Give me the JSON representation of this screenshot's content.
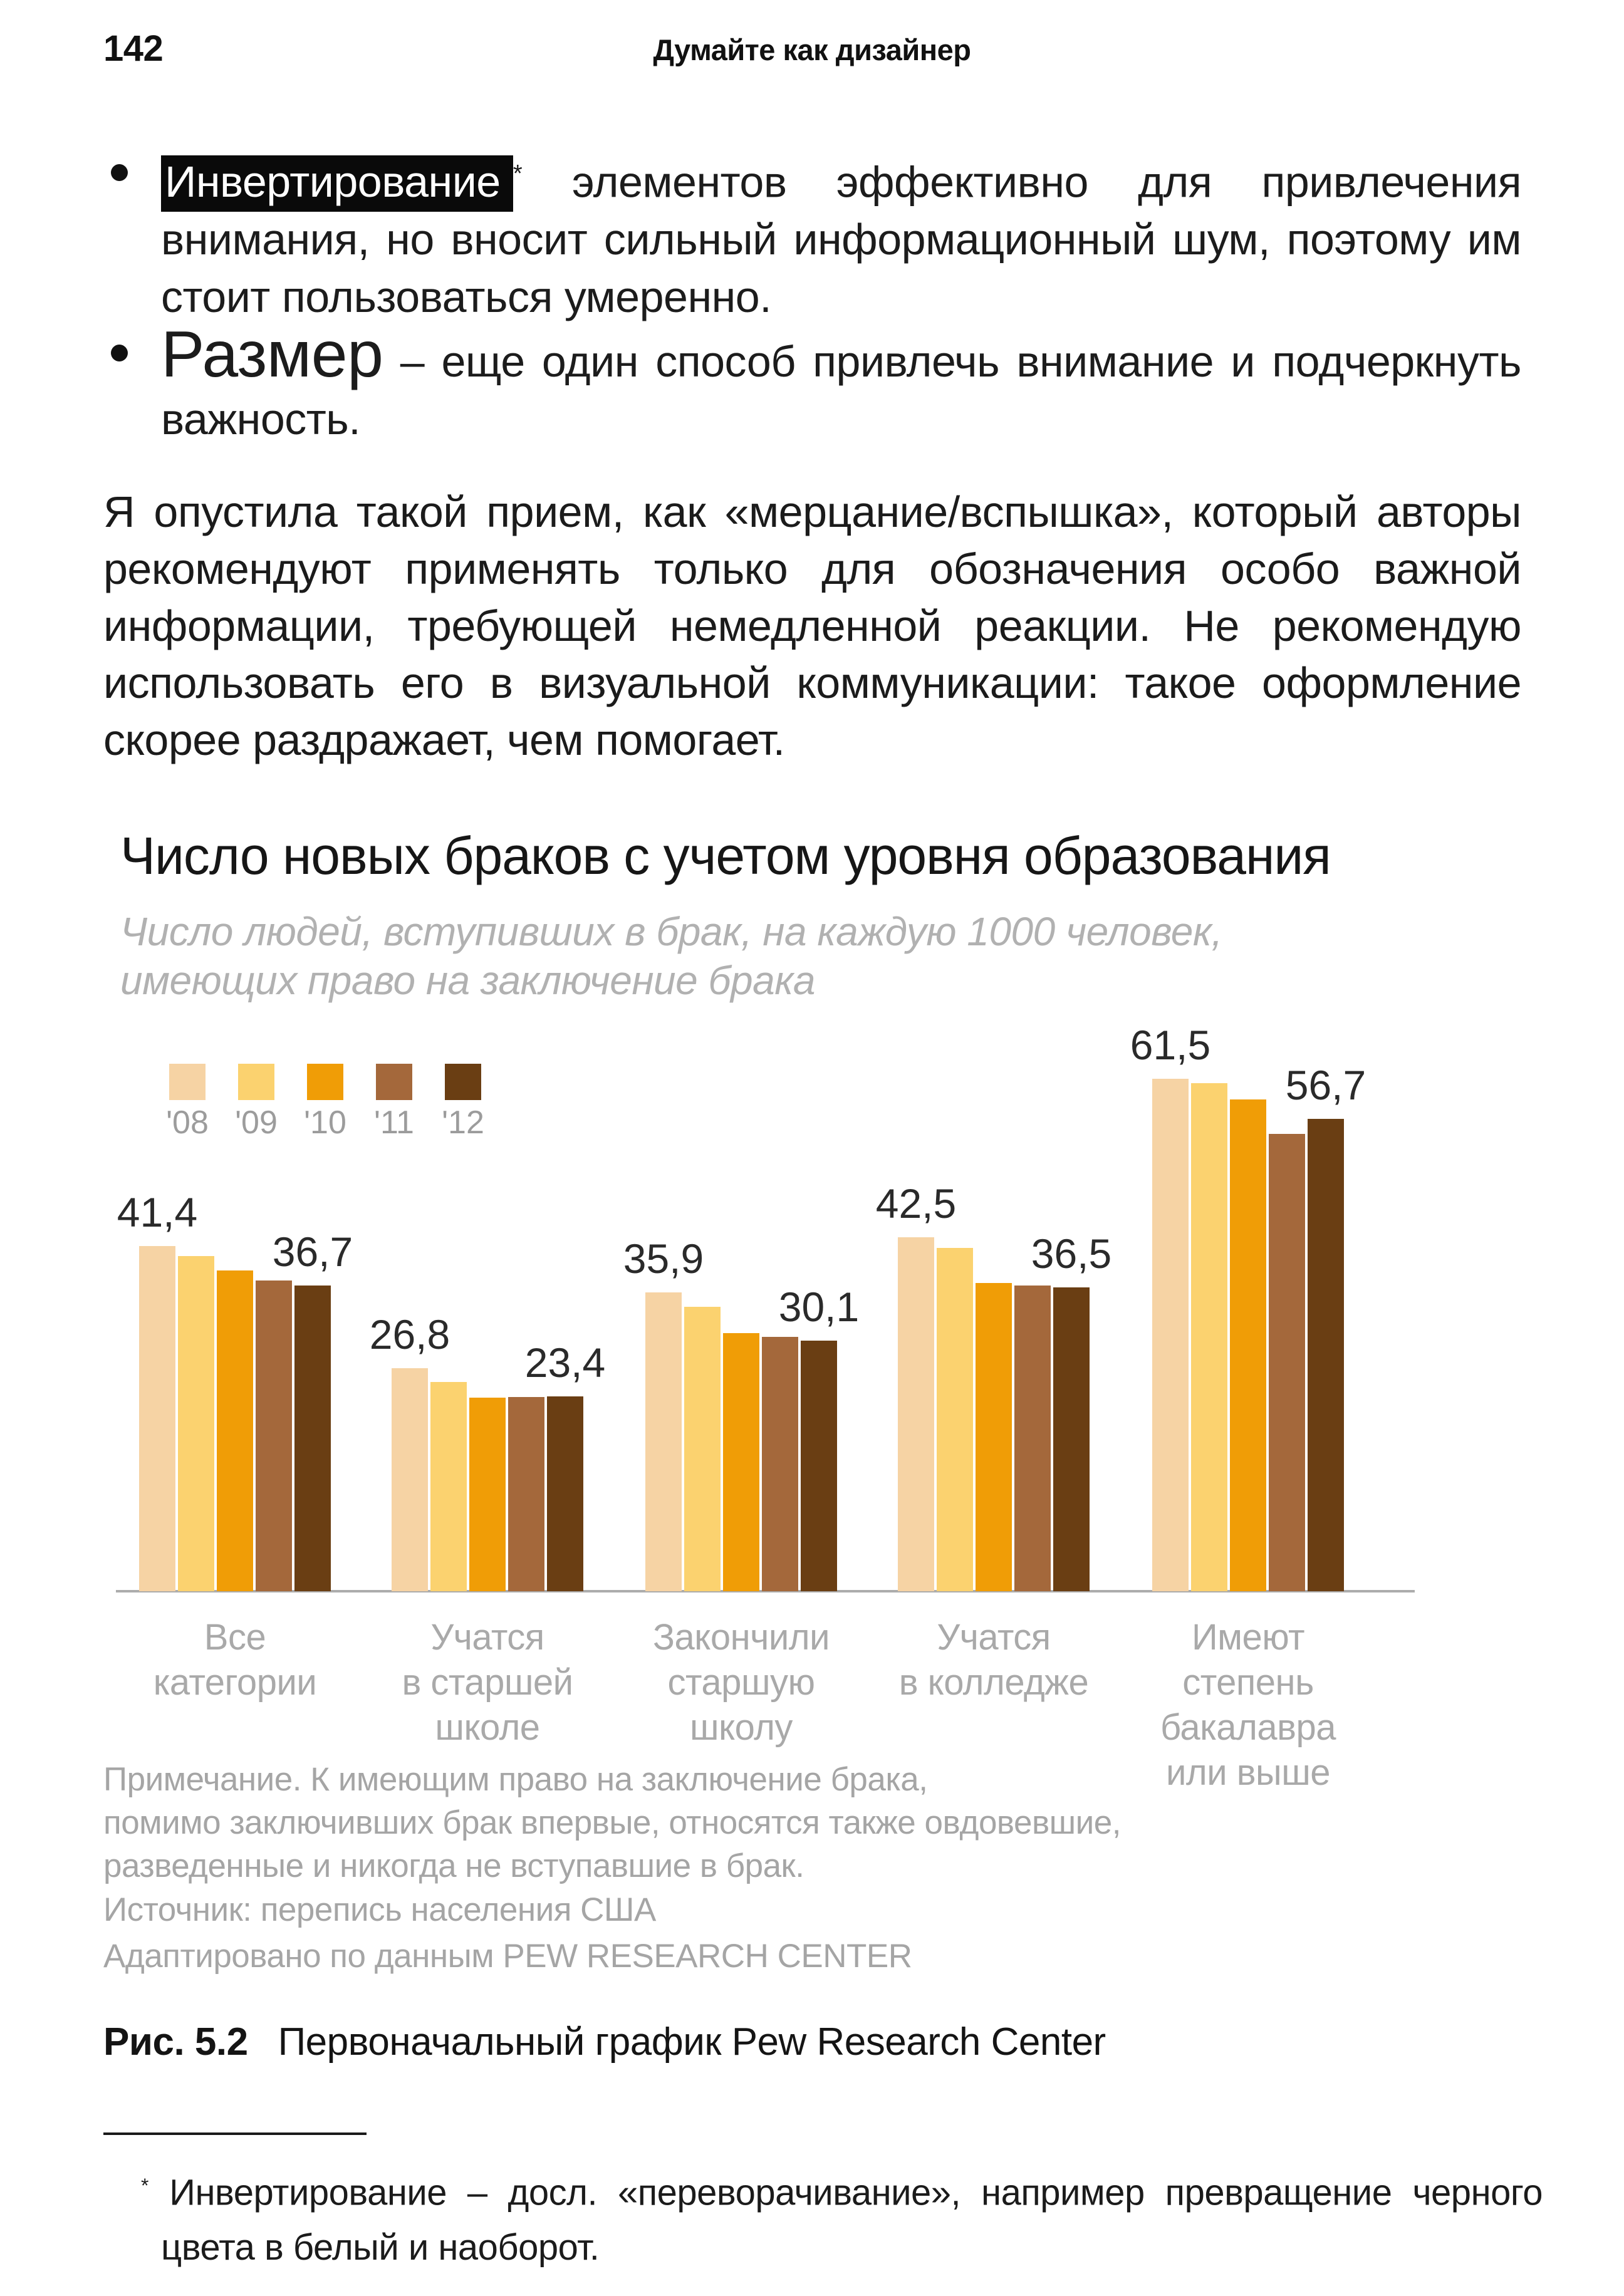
{
  "page": {
    "number": "142",
    "running_head": "Думайте как дизайнер"
  },
  "bullets": [
    {
      "highlight": "Инвертирование",
      "footnote_marker": "*",
      "rest": " элементов эффективно для привлечения внимания, но вносит сильный информационный шум, по­этому им стоит пользоваться умеренно."
    },
    {
      "lead": "Размер",
      "rest": " – еще один способ привлечь внимание и подчерк­нуть важность."
    }
  ],
  "paragraph": "Я опустила такой прием, как «мерцание/вспышка», который авторы рекомендуют применять только для обозначения особо важной информации, требующей немедленной реак­ции. Не рекомендую использовать его в визуальной коммуни­кации: такое оформление скорее раздражает, чем помогает.",
  "chart_data": {
    "type": "bar",
    "title": "Число новых браков с учетом уровня образования",
    "subtitle": "Число людей, вступивших в брак, на каждую 1000 человек,\nимеющих право на заключение брака",
    "legend_position": "top-left",
    "grid": false,
    "ylim": [
      0,
      65
    ],
    "legend": [
      {
        "label": "'08",
        "color": "#F6D3A4"
      },
      {
        "label": "'09",
        "color": "#FBD26F"
      },
      {
        "label": "'10",
        "color": "#F09D06"
      },
      {
        "label": "'11",
        "color": "#A4683B"
      },
      {
        "label": "'12",
        "color": "#6A3E13"
      }
    ],
    "categories": [
      "Все\nкатегории",
      "Учатся\nв старшей\nшколе",
      "Закончили\nстаршую\nшколу",
      "Учатся\nв колледже",
      "Имеют\nстепень\nбакалавра\nили выше"
    ],
    "series": [
      {
        "name": "'08",
        "values": [
          41.4,
          26.8,
          35.9,
          42.5,
          61.5
        ]
      },
      {
        "name": "'09",
        "values": [
          40.2,
          25.1,
          34.1,
          41.2,
          61.0
        ]
      },
      {
        "name": "'10",
        "values": [
          38.5,
          23.2,
          31.0,
          37.0,
          59.0
        ]
      },
      {
        "name": "'11",
        "values": [
          37.3,
          23.3,
          30.5,
          36.7,
          54.9
        ]
      },
      {
        "name": "'12",
        "values": [
          36.7,
          23.4,
          30.1,
          36.5,
          56.7
        ]
      }
    ],
    "value_labels": [
      {
        "g": 0,
        "b": 0,
        "text": "41,4"
      },
      {
        "g": 0,
        "b": 4,
        "text": "36,7"
      },
      {
        "g": 1,
        "b": 0,
        "text": "26,8"
      },
      {
        "g": 1,
        "b": 4,
        "text": "23,4"
      },
      {
        "g": 2,
        "b": 0,
        "text": "35,9"
      },
      {
        "g": 2,
        "b": 4,
        "text": "30,1"
      },
      {
        "g": 3,
        "b": 0,
        "text": "42,5"
      },
      {
        "g": 3,
        "b": 4,
        "text": "36,5"
      },
      {
        "g": 4,
        "b": 0,
        "text": "61,5"
      },
      {
        "g": 4,
        "b": 4,
        "text": "56,7"
      }
    ],
    "note": "Примечание. К имеющим право на заключение брака,\nпомимо заключивших брак впервые, относятся также овдовевшие,\nразведенные и никогда не вступавшие в брак.",
    "source": "Источник: перепись населения США",
    "adapted": "Адаптировано по данным PEW RESEARCH CENTER",
    "axis_color": "#ACACAC"
  },
  "caption": {
    "label": "Рис. 5.2",
    "text": "Первоначальный график Pew Research Center"
  },
  "footnote": {
    "marker": "*",
    "text": " Инвертирование – досл. «переворачивание», например превращение черного цвета в белый и наоборот."
  }
}
